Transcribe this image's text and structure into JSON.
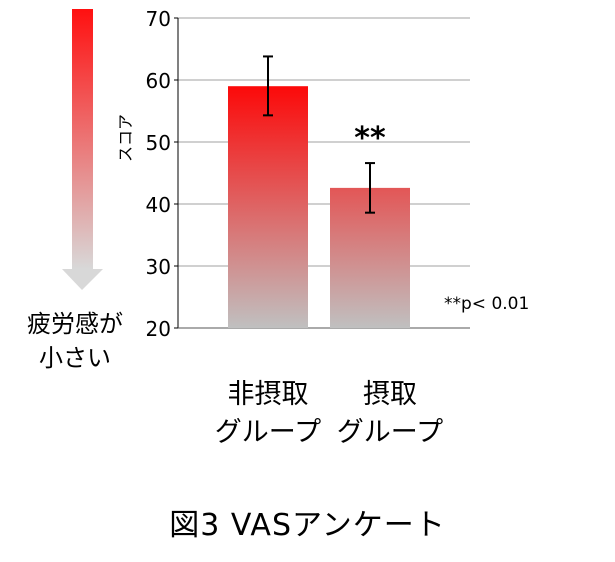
{
  "chart_data": {
    "type": "bar",
    "title": "図3 VASアンケート",
    "ylabel": "スコア",
    "xlabel": "",
    "ylim": [
      20,
      70
    ],
    "yticks": [
      20,
      30,
      40,
      50,
      60,
      70
    ],
    "grid": true,
    "categories": [
      "非摂取\nグループ",
      "摂取\nグループ"
    ],
    "category_lines": [
      [
        "非摂取",
        "グループ"
      ],
      [
        "摂取",
        "グループ"
      ]
    ],
    "values": [
      59.0,
      42.6
    ],
    "error_low": [
      54.3,
      38.6
    ],
    "error_high": [
      63.8,
      46.6
    ],
    "significance_marker": "**",
    "footnote": "**p< 0.01",
    "indicator_text": [
      "疲労感が",
      "小さい"
    ],
    "colors": {
      "top": "#ff0000",
      "bottom": "#c0c0c0",
      "arrow_top": "#ff1010",
      "arrow_bottom": "#d8d8d8"
    }
  }
}
